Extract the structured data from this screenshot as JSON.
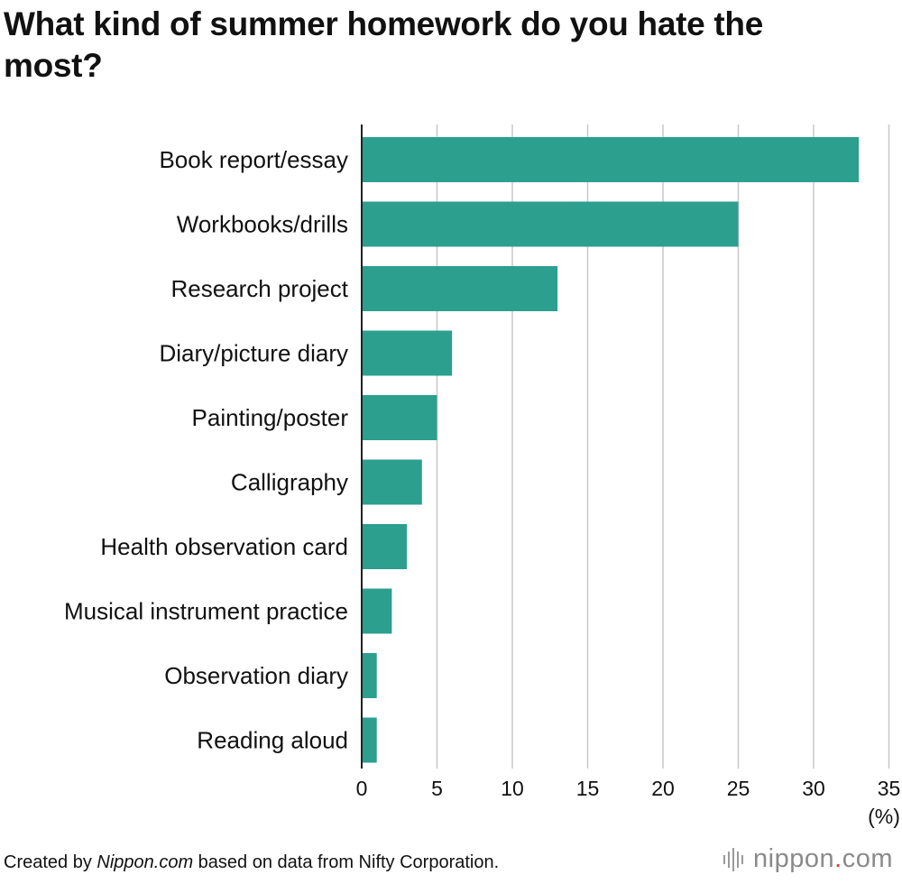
{
  "title": "What kind of summer homework do you hate the most?",
  "footer": {
    "prefix": "Created by ",
    "source_name": "Nippon.com",
    "suffix": " based on data from Nifty Corporation."
  },
  "logo": {
    "part1": "nippon",
    "dot": ".",
    "part2": "com"
  },
  "colors": {
    "bar": "#2c9f8f",
    "grid": "#c8c8c8",
    "axis": "#222222"
  },
  "chart_data": {
    "type": "bar",
    "orientation": "horizontal",
    "title": "What kind of summer homework do you hate the most?",
    "categories": [
      "Book report/essay",
      "Workbooks/drills",
      "Research project",
      "Diary/picture diary",
      "Painting/poster",
      "Calligraphy",
      "Health observation card",
      "Musical instrument practice",
      "Observation diary",
      "Reading aloud"
    ],
    "values": [
      33,
      25,
      13,
      6,
      5,
      4,
      3,
      2,
      1,
      1
    ],
    "xlim": [
      0,
      35
    ],
    "xticks": [
      "0",
      "5",
      "10",
      "15",
      "20",
      "25",
      "30",
      "35"
    ],
    "unit_label": "(%)",
    "grid": true,
    "legend": "none"
  }
}
